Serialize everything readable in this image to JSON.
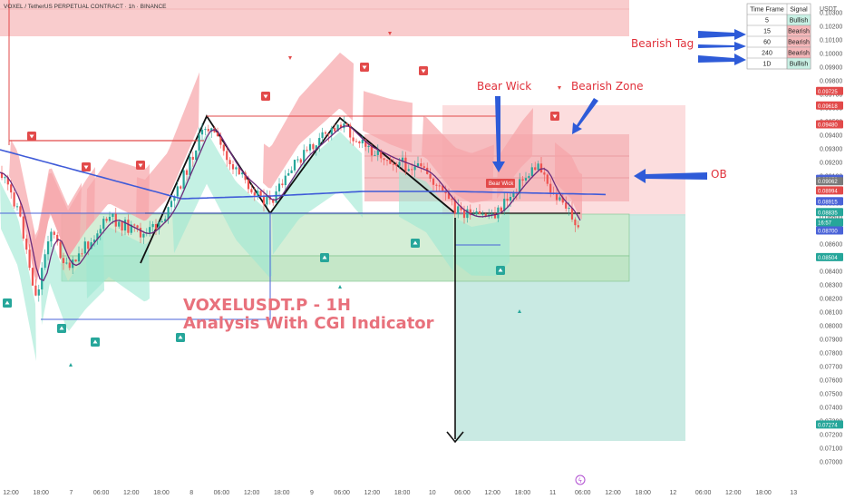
{
  "chart_data": {
    "type": "candlestick",
    "title": "VOXEL / TetherUS PERPETUAL CONTRACT · 1h · BINANCE",
    "currency": "USDT",
    "y_range": [
      0.07,
      0.104
    ],
    "y_ticks": [
      "0.10300",
      "0.10200",
      "0.10100",
      "0.10000",
      "0.09900",
      "0.09800",
      "0.09700",
      "0.09600",
      "0.09500",
      "0.09400",
      "0.09300",
      "0.09200",
      "0.09100",
      "0.09000",
      "0.08900",
      "0.08800",
      "0.08700",
      "0.08600",
      "0.08500",
      "0.08400",
      "0.08300",
      "0.08200",
      "0.08100",
      "0.08000",
      "0.07900",
      "0.07800",
      "0.07700",
      "0.07600",
      "0.07500",
      "0.07400",
      "0.07300",
      "0.07200",
      "0.07100",
      "0.07000"
    ],
    "x_ticks": [
      "12:00",
      "18:00",
      "7",
      "06:00",
      "12:00",
      "18:00",
      "8",
      "06:00",
      "12:00",
      "18:00",
      "9",
      "06:00",
      "12:00",
      "18:00",
      "10",
      "06:00",
      "12:00",
      "18:00",
      "11",
      "06:00",
      "12:00",
      "18:00",
      "12",
      "06:00",
      "12:00",
      "18:00",
      "13"
    ],
    "price_labels": [
      {
        "value": 0.09725,
        "text": "0.09725",
        "color": "#e24a4a"
      },
      {
        "value": 0.09618,
        "text": "0.09618",
        "color": "#e24a4a"
      },
      {
        "value": 0.0948,
        "text": "0.09480",
        "color": "#e24a4a"
      },
      {
        "value": 0.09079,
        "text": "0.09079",
        "color": "#4a63d8"
      },
      {
        "value": 0.09062,
        "text": "0.09062",
        "color": "#7a7a7a"
      },
      {
        "value": 0.08994,
        "text": "0.08994",
        "color": "#e24a4a"
      },
      {
        "value": 0.08915,
        "text": "0.08915",
        "color": "#4a63d8"
      },
      {
        "value": 0.08835,
        "text": "0.08835",
        "color": "#26a69a"
      },
      {
        "value": 0.0876,
        "text": "16:57",
        "color": "#26a69a"
      },
      {
        "value": 0.087,
        "text": "0.08700",
        "color": "#4a63d8"
      },
      {
        "value": 0.08504,
        "text": "0.08504",
        "color": "#26a69a"
      },
      {
        "value": 0.07274,
        "text": "0.07274",
        "color": "#26a69a"
      }
    ],
    "annotations": [
      "Bearish Tag",
      "Bear Wick",
      "Bearish Zone",
      "OB",
      "Bear Wick"
    ],
    "watermark_title": "VOXELUSDT.P - 1H",
    "watermark_subtitle": "Analysis With CGI Indicator",
    "signal_table": {
      "headers": [
        "Time Frame",
        "Signal"
      ],
      "rows": [
        {
          "tf": "5",
          "signal": "Bullish"
        },
        {
          "tf": "15",
          "signal": "Bearish"
        },
        {
          "tf": "60",
          "signal": "Bearish"
        },
        {
          "tf": "240",
          "signal": "Bearish"
        },
        {
          "tf": "1D",
          "signal": "Bullish"
        }
      ]
    },
    "zones": [
      {
        "kind": "supply",
        "from": 0.103,
        "to": 0.1048
      },
      {
        "kind": "bearish",
        "from": 0.0903,
        "to": 0.0972
      },
      {
        "kind": "ob",
        "from": 0.0903,
        "to": 0.0922
      },
      {
        "kind": "demand",
        "from": 0.085,
        "to": 0.089
      },
      {
        "kind": "demand-low",
        "from": 0.085,
        "to": 0.0861
      },
      {
        "kind": "target",
        "from": 0.07274,
        "to": 0.0893
      }
    ],
    "colors": {
      "up": "#26a69a",
      "down": "#ef5350",
      "ma_blue": "#3f5bd8",
      "ma_purple": "#6b2a7a",
      "arrow": "#2e5bd8",
      "bear": "#e24a4a",
      "bull": "#26a69a"
    }
  }
}
